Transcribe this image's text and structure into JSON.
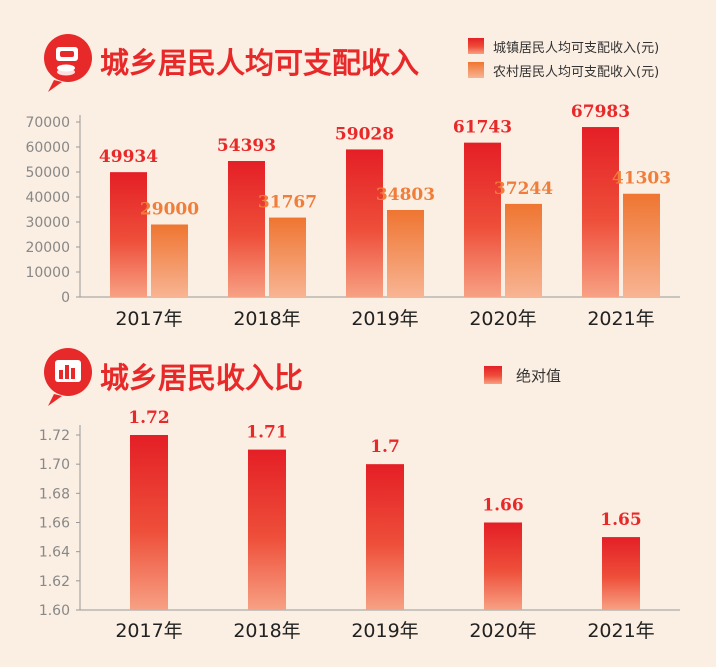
{
  "chart_data": [
    {
      "type": "bar",
      "title": "城乡居民人均可支配收入",
      "icon": "money-coin-icon",
      "categories": [
        "2017年",
        "2018年",
        "2019年",
        "2020年",
        "2021年"
      ],
      "series": [
        {
          "name": "城镇居民人均可支配收入(元)",
          "values": [
            49934,
            54393,
            59028,
            61743,
            67983
          ],
          "color": "#e8292a"
        },
        {
          "name": "农村居民人均可支配收入(元)",
          "values": [
            29000,
            31767,
            34803,
            37244,
            41303
          ],
          "color": "#f07e3a"
        }
      ],
      "data_labels": [
        [
          "49934",
          "54393",
          "59028",
          "61743",
          "67983"
        ],
        [
          "29000",
          "31767",
          "34803",
          "37244",
          "41303"
        ]
      ],
      "yticks": [
        "0",
        "10000",
        "20000",
        "30000",
        "40000",
        "50000",
        "60000",
        "70000"
      ],
      "ylim": [
        0,
        70000
      ],
      "legend": "top-right",
      "grid": false
    },
    {
      "type": "bar",
      "title": "城乡居民收入比",
      "icon": "bar-chart-icon",
      "categories": [
        "2017年",
        "2018年",
        "2019年",
        "2020年",
        "2021年"
      ],
      "series": [
        {
          "name": "绝对值",
          "values": [
            1.72,
            1.71,
            1.7,
            1.66,
            1.65
          ],
          "color": "#e8292a"
        }
      ],
      "data_labels": [
        "1.72",
        "1.71",
        "1.7",
        "1.66",
        "1.65"
      ],
      "yticks": [
        "1.60",
        "1.62",
        "1.64",
        "1.66",
        "1.68",
        "1.70",
        "1.72"
      ],
      "ylim": [
        1.6,
        1.72
      ],
      "legend": "top-right",
      "grid": false
    }
  ]
}
